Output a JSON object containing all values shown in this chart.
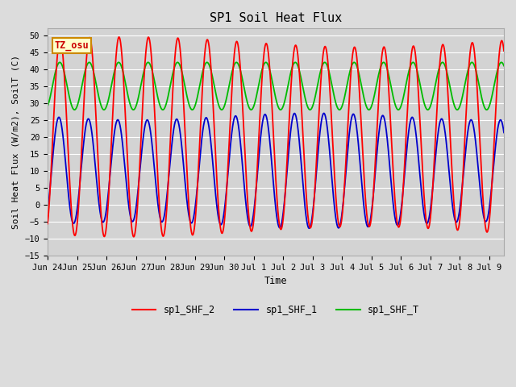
{
  "title": "SP1 Soil Heat Flux",
  "ylabel": "Soil Heat Flux (W/m2), SoilT (C)",
  "xlabel": "Time",
  "ylim": [
    -15,
    52
  ],
  "yticks": [
    -15,
    -10,
    -5,
    0,
    5,
    10,
    15,
    20,
    25,
    30,
    35,
    40,
    45,
    50
  ],
  "background_color": "#dcdcdc",
  "plot_bg_color": "#d3d3d3",
  "colors": {
    "sp1_SHF_2": "#ff0000",
    "sp1_SHF_1": "#0000cc",
    "sp1_SHF_T": "#00bb00"
  },
  "annotation_text": "TZ_osu",
  "annotation_bg": "#ffffcc",
  "annotation_border": "#cc8800",
  "n_days": 15.5,
  "tick_labels": [
    "Jun 24",
    "Jun 25",
    "Jun 26",
    "Jun 27",
    "Jun 28",
    "Jun 29",
    "Jun 30",
    "Jul 1",
    "Jul 2",
    "Jul 3",
    "Jul 4",
    "Jul 5",
    "Jul 6",
    "Jul 7",
    "Jul 8",
    "Jul 9"
  ]
}
